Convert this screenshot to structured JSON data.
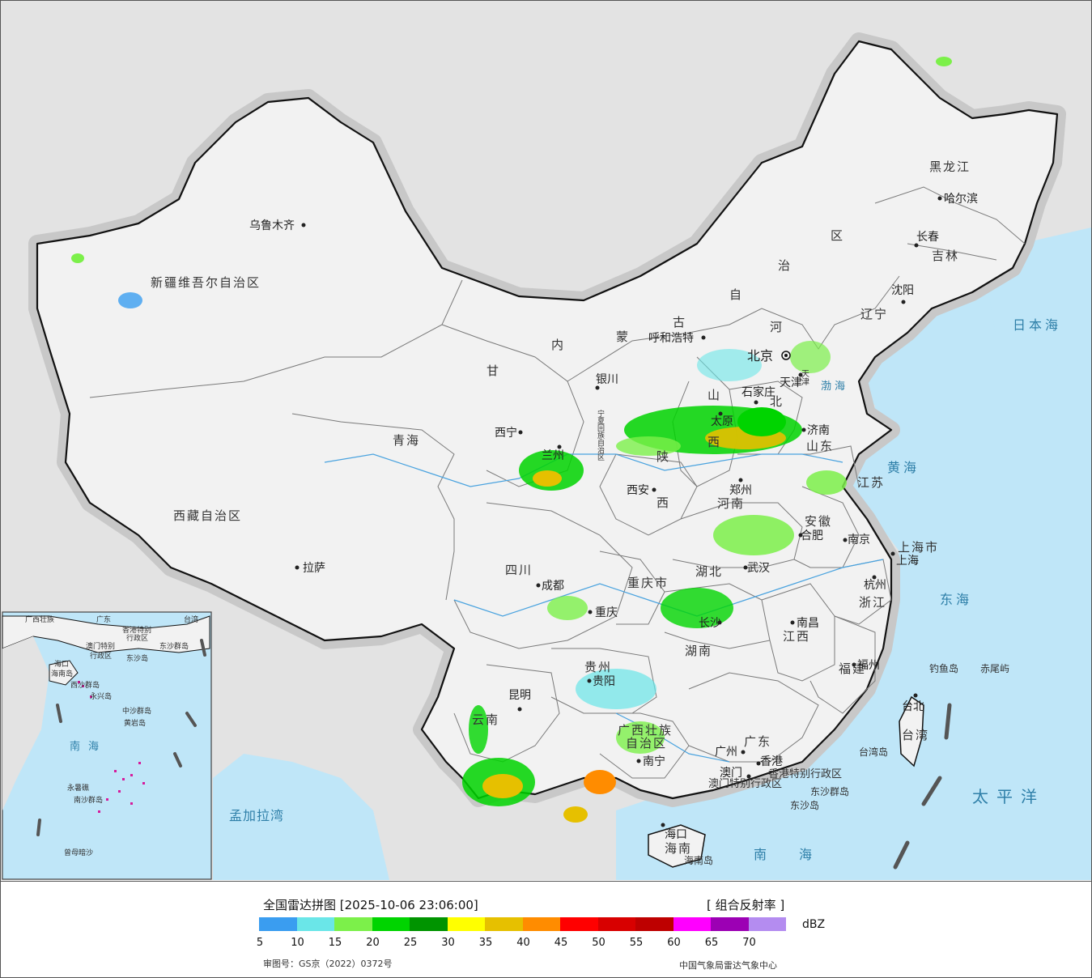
{
  "map": {
    "provinces": [
      {
        "name": "新疆维吾尔自治区"
      },
      {
        "name": "西藏自治区"
      },
      {
        "name": "青海"
      },
      {
        "name": "甘"
      },
      {
        "name": "内"
      },
      {
        "name": "蒙"
      },
      {
        "name": "古"
      },
      {
        "name": "自"
      },
      {
        "name": "治"
      },
      {
        "name": "区"
      },
      {
        "name": "黑龙江"
      },
      {
        "name": "吉林"
      },
      {
        "name": "辽宁"
      },
      {
        "name": "河"
      },
      {
        "name": "北"
      },
      {
        "name": "山东"
      },
      {
        "name": "山"
      },
      {
        "name": "西"
      },
      {
        "name": "陕"
      },
      {
        "name": "西"
      },
      {
        "name": "河南"
      },
      {
        "name": "江苏"
      },
      {
        "name": "安徽"
      },
      {
        "name": "四川"
      },
      {
        "name": "重庆市"
      },
      {
        "name": "湖北"
      },
      {
        "name": "湖南"
      },
      {
        "name": "江西"
      },
      {
        "name": "浙江"
      },
      {
        "name": "福建"
      },
      {
        "name": "贵州"
      },
      {
        "name": "云南"
      },
      {
        "name": "广西壮族"
      },
      {
        "name": "自治区"
      },
      {
        "name": "广东"
      },
      {
        "name": "海南"
      },
      {
        "name": "台湾"
      },
      {
        "name": "上海市"
      },
      {
        "name": "香港特别行政区"
      },
      {
        "name": "澳门特别行政区"
      },
      {
        "name": "宁夏回族自治区"
      },
      {
        "name": "天津"
      }
    ],
    "cities": [
      {
        "name": "乌鲁木齐"
      },
      {
        "name": "拉萨"
      },
      {
        "name": "西宁"
      },
      {
        "name": "银川"
      },
      {
        "name": "呼和浩特"
      },
      {
        "name": "北京"
      },
      {
        "name": "天津"
      },
      {
        "name": "石家庄"
      },
      {
        "name": "太原"
      },
      {
        "name": "济南"
      },
      {
        "name": "郑州"
      },
      {
        "name": "西安"
      },
      {
        "name": "兰州"
      },
      {
        "name": "合肥"
      },
      {
        "name": "南京"
      },
      {
        "name": "上海"
      },
      {
        "name": "杭州"
      },
      {
        "name": "武汉"
      },
      {
        "name": "长沙"
      },
      {
        "name": "南昌"
      },
      {
        "name": "福州"
      },
      {
        "name": "成都"
      },
      {
        "name": "重庆"
      },
      {
        "name": "贵阳"
      },
      {
        "name": "昆明"
      },
      {
        "name": "南宁"
      },
      {
        "name": "广州"
      },
      {
        "name": "香港"
      },
      {
        "name": "澳门"
      },
      {
        "name": "海口"
      },
      {
        "name": "台北"
      },
      {
        "name": "哈尔滨"
      },
      {
        "name": "长春"
      },
      {
        "name": "沈阳"
      }
    ],
    "seas": [
      {
        "name": "日本海"
      },
      {
        "name": "黄海"
      },
      {
        "name": "渤海"
      },
      {
        "name": "东海"
      },
      {
        "name": "太平洋"
      },
      {
        "name": "南海"
      },
      {
        "name": "孟加拉湾"
      }
    ],
    "islands": [
      {
        "name": "钓鱼岛"
      },
      {
        "name": "赤尾屿"
      },
      {
        "name": "台湾岛"
      },
      {
        "name": "东沙群岛"
      },
      {
        "name": "东沙岛"
      },
      {
        "name": "海南岛"
      }
    ],
    "inset": {
      "labels": [
        "广西壮族",
        "广东",
        "台湾",
        "香港特别",
        "澳门特别",
        "行政区",
        "行政区",
        "东沙群岛",
        "东沙岛",
        "海口",
        "海南岛",
        "西沙群岛",
        "永兴岛",
        "中沙群岛",
        "黄岩岛",
        "南海",
        "永暑礁",
        "南沙群岛",
        "曾母暗沙"
      ]
    },
    "colors": {
      "land": "#f2f2f2",
      "sea": "#bfe6f8",
      "foreign": "#e3e3e3",
      "border": "#111111",
      "province_line": "#7a7a7a"
    }
  },
  "legend": {
    "title": "全国雷达拼图 [2025-10-06 23:06:00]",
    "product": "[ 组合反射率 ]",
    "unit": "dBZ",
    "ticks": [
      "5",
      "10",
      "15",
      "20",
      "25",
      "30",
      "35",
      "40",
      "45",
      "50",
      "55",
      "60",
      "65",
      "70"
    ],
    "colors": [
      "#3a9df0",
      "#6ae6e8",
      "#7cf04a",
      "#00d400",
      "#009400",
      "#ffff00",
      "#e6c000",
      "#ff8c00",
      "#ff0000",
      "#d80000",
      "#be0000",
      "#ff00ff",
      "#9c00b4",
      "#b48cf0"
    ],
    "approval": "审图号：GS京（2022）0372号",
    "agency": "中国气象局雷达气象中心"
  }
}
